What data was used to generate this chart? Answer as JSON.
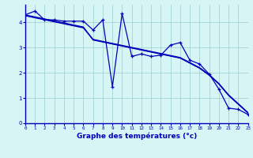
{
  "x_hours": [
    0,
    1,
    2,
    3,
    4,
    5,
    6,
    7,
    8,
    9,
    10,
    11,
    12,
    13,
    14,
    15,
    16,
    17,
    18,
    19,
    20,
    21,
    22,
    23
  ],
  "temp_data": [
    4.3,
    4.45,
    4.1,
    4.1,
    4.05,
    4.05,
    4.05,
    3.7,
    4.1,
    1.45,
    4.35,
    2.65,
    2.75,
    2.65,
    2.7,
    3.1,
    3.2,
    2.5,
    2.35,
    1.95,
    1.35,
    0.6,
    0.55,
    0.35
  ],
  "line1": [
    4.3,
    4.22,
    4.14,
    4.06,
    3.98,
    3.9,
    3.82,
    3.3,
    3.22,
    3.14,
    3.06,
    2.98,
    2.9,
    2.82,
    2.74,
    2.66,
    2.58,
    2.38,
    2.18,
    1.9,
    1.55,
    1.1,
    0.75,
    0.4
  ],
  "line2": [
    4.28,
    4.2,
    4.12,
    4.04,
    3.96,
    3.88,
    3.8,
    3.33,
    3.25,
    3.17,
    3.09,
    3.01,
    2.93,
    2.85,
    2.77,
    2.69,
    2.61,
    2.41,
    2.21,
    1.93,
    1.58,
    1.13,
    0.78,
    0.43
  ],
  "line3": [
    4.26,
    4.18,
    4.1,
    4.02,
    3.94,
    3.86,
    3.78,
    3.31,
    3.23,
    3.15,
    3.07,
    2.99,
    2.91,
    2.83,
    2.75,
    2.67,
    2.59,
    2.39,
    2.19,
    1.91,
    1.56,
    1.11,
    0.76,
    0.41
  ],
  "bg_color": "#d8f5f5",
  "line_color": "#0000bb",
  "grid_color": "#99cccc",
  "xlabel": "Graphe des températures (°c)",
  "xlim": [
    0,
    23
  ],
  "ylim": [
    0,
    4.7
  ],
  "yticks": [
    0,
    1,
    2,
    3,
    4
  ],
  "xticks": [
    0,
    1,
    2,
    3,
    4,
    5,
    6,
    7,
    8,
    9,
    10,
    11,
    12,
    13,
    14,
    15,
    16,
    17,
    18,
    19,
    20,
    21,
    22,
    23
  ]
}
